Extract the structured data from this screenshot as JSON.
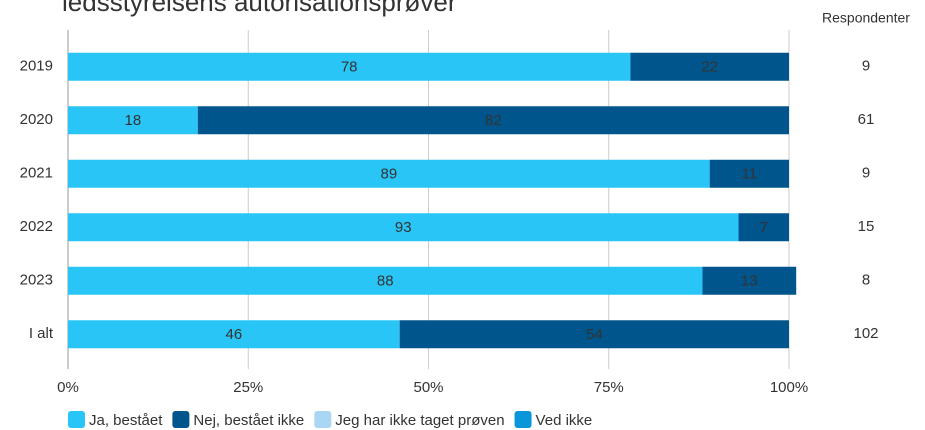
{
  "chart_data": {
    "type": "stacked_barh",
    "title": "ledsstyrelsens autorisationsprøver",
    "categories": [
      "2019",
      "2020",
      "2021",
      "2022",
      "2023",
      "I alt"
    ],
    "series": [
      {
        "name": "Ja, bestået",
        "color": "#29c5f6",
        "values": [
          78,
          18,
          89,
          93,
          88,
          46
        ]
      },
      {
        "name": "Nej, bestået ikke",
        "color": "#00558c",
        "values": [
          22,
          82,
          11,
          7,
          13,
          54
        ]
      },
      {
        "name": "Jeg har ikke taget prøven",
        "color": "#a9d6f2",
        "values": [
          0,
          0,
          0,
          0,
          0,
          0
        ]
      },
      {
        "name": "Ved ikke",
        "color": "#0a97d9",
        "values": [
          0,
          0,
          0,
          0,
          0,
          0
        ]
      }
    ],
    "xlim": [
      0,
      100
    ],
    "xticks": [
      {
        "value": 0,
        "label": "0%"
      },
      {
        "value": 25,
        "label": "25%"
      },
      {
        "value": 50,
        "label": "50%"
      },
      {
        "value": 75,
        "label": "75%"
      },
      {
        "value": 100,
        "label": "100%"
      }
    ],
    "grid": true,
    "respondents_label": "Respondenter",
    "respondents": [
      9,
      61,
      9,
      15,
      8,
      102
    ],
    "legend": "bottom"
  }
}
